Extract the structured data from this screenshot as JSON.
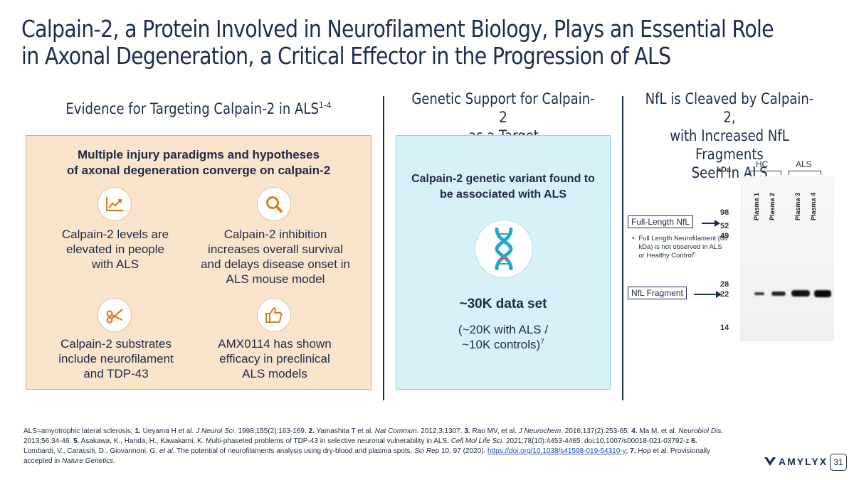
{
  "slide": {
    "title_line1": "Calpain-2, a Protein Involved in Neurofilament Biology, Plays an Essential Role",
    "title_line2": "in Axonal Degeneration, a Critical Effector in the Progression of ALS",
    "page_number": "31"
  },
  "columns": {
    "evidence": {
      "heading": "Evidence for Targeting Calpain-2 in ALS",
      "heading_sup": "1-4",
      "box_title_line1": "Multiple injury paradigms and hypotheses",
      "box_title_line2": "of axonal degeneration converge on calpain-2",
      "cells": [
        {
          "icon": "line-chart-icon",
          "text": "Calpain-2 levels are elevated in people with ALS"
        },
        {
          "icon": "magnifier-icon",
          "text": "Calpain-2 inhibition increases overall survival and delays disease onset in ALS mouse model"
        },
        {
          "icon": "scissors-icon",
          "text": "Calpain-2 substrates include neurofilament and TDP-43"
        },
        {
          "icon": "thumbs-up-icon",
          "text": "AMX0114 has shown efficacy in preclinical ALS models"
        }
      ]
    },
    "genetic": {
      "heading_line1": "Genetic Support for Calpain-2",
      "heading_line2": "as a Target",
      "box_title_line1": "Calpain-2 genetic variant found to",
      "box_title_line2": "be associated with ALS",
      "icon": "dna-icon",
      "big_text": "~30K data set",
      "sub_line1": "(~20K with ALS /",
      "sub_line2": "~10K controls)",
      "sub_sup": "7"
    },
    "nfl": {
      "heading_line1": "NfL is Cleaved by Calpain-2,",
      "heading_line2": "with Increased NfL Fragments",
      "heading_line3": "Seen in ALS",
      "kda_label": "kDa",
      "group_hc": "HC",
      "group_als": "ALS",
      "lanes": [
        "Plasma 1",
        "Plasma 2",
        "Plasma 3",
        "Plasma 4"
      ],
      "markers": [
        "98",
        "52",
        "49",
        "28",
        "22",
        "14"
      ],
      "full_length_label": "Full-Length NfL",
      "fragment_label": "NfL Fragment",
      "bullet_text": "Full Length Neurofilament (68 kDa) is not observed in ALS or Healthy Control",
      "bullet_sup": "6"
    }
  },
  "footnote": {
    "p1": "ALS=amyotrophic lateral sclerosis; ",
    "r1n": "1.",
    "r1a": " Ueyama H et al. ",
    "r1j": "J Neurol Sci",
    "r1b": ". 1998;155(2):163-169. ",
    "r2n": "2.",
    "r2a": " Yamashita T et al. ",
    "r2j": "Nat Commun",
    "r2b": ". 2012;3:1307. ",
    "r3n": "3.",
    "r3a": " Rao MV, et al. ",
    "r3j": "J Neurochem",
    "r3b": ". 2016;137(2):253-65. ",
    "r4n": "4.",
    "r4a": " Ma M, et al. ",
    "r4j": "Neurobiol Dis",
    "r4b": ". 2013;56:34-46. ",
    "r5n": "5.",
    "r5a": " Asakawa, K., Handa, H., Kawakami, K. Multi-phaseted problems of TDP-43 in selective neuronal vulnerability in ALS. ",
    "r5j": "Cell Mol Life Sci",
    "r5b": ". 2021;78(10):4453-4465. doi:10.1007/s00018-021-03792-z ",
    "r6n": "6.",
    "r6a": " Lombardi, V., Carassiti, D., Giovannoni, G. ",
    "r6e": "et al.",
    "r6b": " The potential of neurofilaments analysis using dry-blood and plasma spots. ",
    "r6j": "Sci Rep",
    "r6c": " 10, 97 (2020). ",
    "r6link": "https://doi.org/10.1038/s41598-019-54310-y",
    "r6d": "; ",
    "r7n": "7.",
    "r7a": " Hop et al. Provisionally accepted in ",
    "r7j": "Nature Genetics",
    "r7b": "."
  },
  "brand": {
    "logo_text": "AMYLYX"
  },
  "colors": {
    "navy": "#1c2c52",
    "orange_fill": "#fbe4cc",
    "orange_icon": "#e07b1e",
    "blue_fill": "#d7f1f9",
    "teal": "#2aa7c8"
  }
}
